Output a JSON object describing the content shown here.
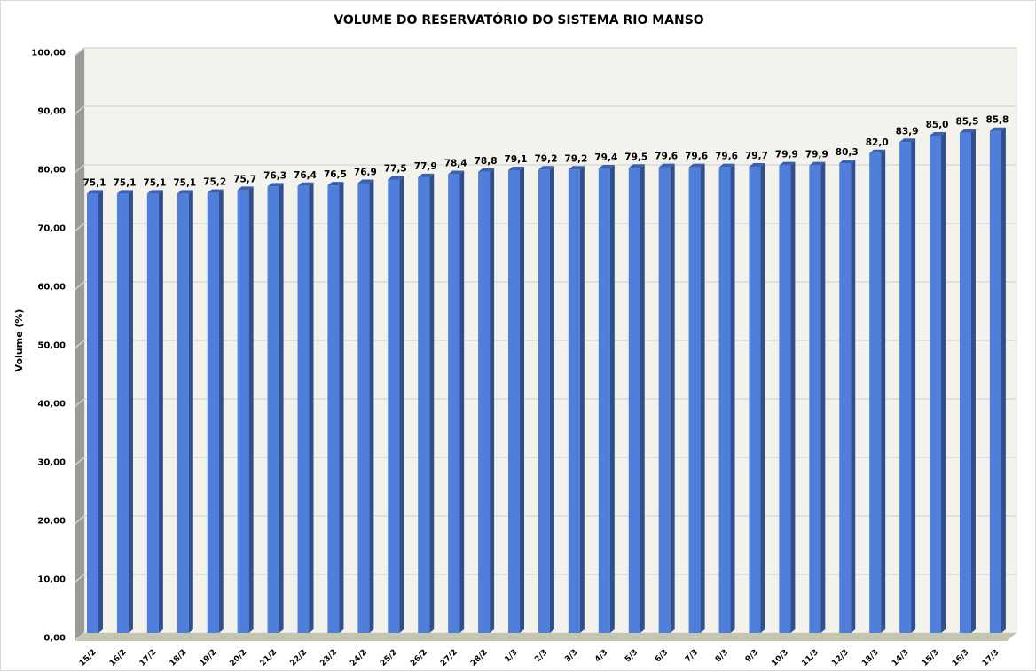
{
  "chart_data": {
    "type": "bar",
    "title": "VOLUME DO RESERVATÓRIO DO SISTEMA RIO MANSO",
    "xlabel": "",
    "ylabel": "Volume (%)",
    "ylim": [
      0,
      100
    ],
    "yticks": [
      "0,00",
      "10,00",
      "20,00",
      "30,00",
      "40,00",
      "50,00",
      "60,00",
      "70,00",
      "80,00",
      "90,00",
      "100,00"
    ],
    "grid": true,
    "legend": "none",
    "categories": [
      "15/2",
      "16/2",
      "17/2",
      "18/2",
      "19/2",
      "20/2",
      "21/2",
      "22/2",
      "23/2",
      "24/2",
      "25/2",
      "26/2",
      "27/2",
      "28/2",
      "1/3",
      "2/3",
      "3/3",
      "4/3",
      "5/3",
      "6/3",
      "7/3",
      "8/3",
      "9/3",
      "10/3",
      "11/3",
      "12/3",
      "13/3",
      "14/3",
      "15/3",
      "16/3",
      "17/3"
    ],
    "values": [
      75.1,
      75.1,
      75.1,
      75.1,
      75.2,
      75.7,
      76.3,
      76.4,
      76.5,
      76.9,
      77.5,
      77.9,
      78.4,
      78.8,
      79.1,
      79.2,
      79.2,
      79.4,
      79.5,
      79.6,
      79.6,
      79.6,
      79.7,
      79.9,
      79.9,
      80.3,
      82.0,
      83.9,
      85.0,
      85.5,
      85.8
    ],
    "labels": [
      "75,1",
      "75,1",
      "75,1",
      "75,1",
      "75,2",
      "75,7",
      "76,3",
      "76,4",
      "76,5",
      "76,9",
      "77,5",
      "77,9",
      "78,4",
      "78,8",
      "79,1",
      "79,2",
      "79,2",
      "79,4",
      "79,5",
      "79,6",
      "79,6",
      "79,6",
      "79,7",
      "79,9",
      "79,9",
      "80,3",
      "82,0",
      "83,9",
      "85,0",
      "85,5",
      "85,8"
    ],
    "colors": {
      "bar_front": "#4f7fdb",
      "bar_side": "#2f4f8f",
      "bar_top": "#3a62b0",
      "wall": "#f3f2ec",
      "side_wall": "#9a9b95",
      "floor": "#c6c5b0",
      "grid": "#d9d9d9"
    }
  }
}
